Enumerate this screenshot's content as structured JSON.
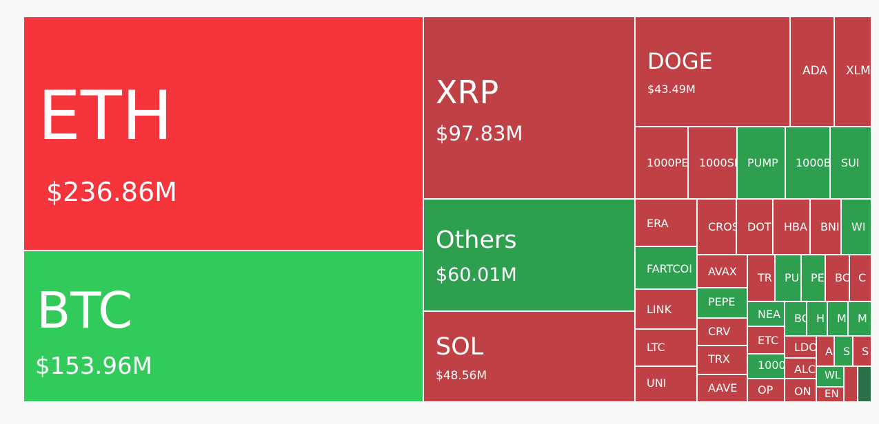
{
  "chart_data": {
    "type": "treemap",
    "colors": {
      "bright_red": "#f5353b",
      "bright_green": "#32cb5b",
      "red": "#bf4146",
      "green": "#2e9e4f",
      "dark_green": "#2c7047"
    },
    "tiles": [
      {
        "symbol": "ETH",
        "value": "$236.86M",
        "color": "bright_red"
      },
      {
        "symbol": "BTC",
        "value": "$153.96M",
        "color": "bright_green"
      },
      {
        "symbol": "XRP",
        "value": "$97.83M",
        "color": "red"
      },
      {
        "symbol": "Others",
        "value": "$60.01M",
        "color": "green"
      },
      {
        "symbol": "SOL",
        "value": "$48.56M",
        "color": "red"
      },
      {
        "symbol": "DOGE",
        "value": "$43.49M",
        "color": "red"
      },
      {
        "symbol": "ADA",
        "value": "",
        "color": "red"
      },
      {
        "symbol": "XLM",
        "value": "",
        "color": "red"
      },
      {
        "symbol": "1000PE",
        "value": "",
        "color": "red"
      },
      {
        "symbol": "1000SI",
        "value": "",
        "color": "red"
      },
      {
        "symbol": "PUMP",
        "value": "",
        "color": "green"
      },
      {
        "symbol": "1000B",
        "value": "",
        "color": "green"
      },
      {
        "symbol": "SUI",
        "value": "",
        "color": "green"
      },
      {
        "symbol": "ERA",
        "value": "",
        "color": "red"
      },
      {
        "symbol": "CROS",
        "value": "",
        "color": "red"
      },
      {
        "symbol": "DOT",
        "value": "",
        "color": "red"
      },
      {
        "symbol": "HBA",
        "value": "",
        "color": "red"
      },
      {
        "symbol": "BNI",
        "value": "",
        "color": "red"
      },
      {
        "symbol": "WI",
        "value": "",
        "color": "green"
      },
      {
        "symbol": "FARTCOI",
        "value": "",
        "color": "green"
      },
      {
        "symbol": "AVAX",
        "value": "",
        "color": "red"
      },
      {
        "symbol": "TR",
        "value": "",
        "color": "red"
      },
      {
        "symbol": "PU",
        "value": "",
        "color": "green"
      },
      {
        "symbol": "PE",
        "value": "",
        "color": "green"
      },
      {
        "symbol": "BC",
        "value": "",
        "color": "red"
      },
      {
        "symbol": "C",
        "value": "",
        "color": "red"
      },
      {
        "symbol": "LINK",
        "value": "",
        "color": "red"
      },
      {
        "symbol": "PEPE",
        "value": "",
        "color": "green"
      },
      {
        "symbol": "NEA",
        "value": "",
        "color": "green"
      },
      {
        "symbol": "BC",
        "value": "",
        "color": "green"
      },
      {
        "symbol": "H",
        "value": "",
        "color": "green"
      },
      {
        "symbol": "M",
        "value": "",
        "color": "green"
      },
      {
        "symbol": "M",
        "value": "",
        "color": "green"
      },
      {
        "symbol": "LTC",
        "value": "",
        "color": "red"
      },
      {
        "symbol": "CRV",
        "value": "",
        "color": "red"
      },
      {
        "symbol": "ETC",
        "value": "",
        "color": "red"
      },
      {
        "symbol": "LDO",
        "value": "",
        "color": "red"
      },
      {
        "symbol": "A",
        "value": "",
        "color": "red"
      },
      {
        "symbol": "S",
        "value": "",
        "color": "green"
      },
      {
        "symbol": "S",
        "value": "",
        "color": "red"
      },
      {
        "symbol": "TRX",
        "value": "",
        "color": "red"
      },
      {
        "symbol": "1000",
        "value": "",
        "color": "green"
      },
      {
        "symbol": "ALC",
        "value": "",
        "color": "red"
      },
      {
        "symbol": "WL",
        "value": "",
        "color": "green"
      },
      {
        "symbol": "",
        "value": "",
        "color": "red"
      },
      {
        "symbol": "",
        "value": "",
        "color": "dark_green"
      },
      {
        "symbol": "UNI",
        "value": "",
        "color": "red"
      },
      {
        "symbol": "AAVE",
        "value": "",
        "color": "red"
      },
      {
        "symbol": "OP",
        "value": "",
        "color": "red"
      },
      {
        "symbol": "ON",
        "value": "",
        "color": "red"
      },
      {
        "symbol": "EN",
        "value": "",
        "color": "red"
      }
    ]
  }
}
